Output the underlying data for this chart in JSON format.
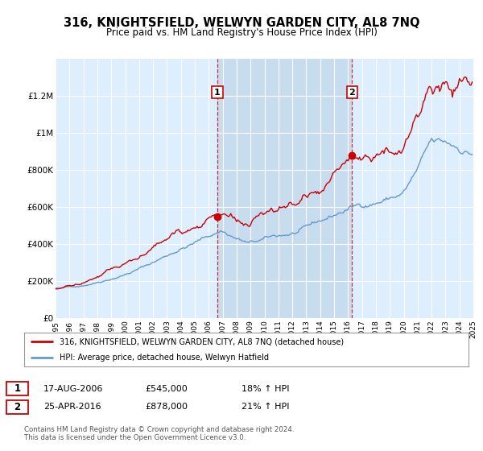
{
  "title": "316, KNIGHTSFIELD, WELWYN GARDEN CITY, AL8 7NQ",
  "subtitle": "Price paid vs. HM Land Registry's House Price Index (HPI)",
  "title_fontsize": 10.5,
  "subtitle_fontsize": 8.5,
  "background_color": "#ffffff",
  "plot_bg_color": "#ddeeff",
  "shade_color": "#c8dcf0",
  "grid_color": "#ffffff",
  "red_line_color": "#cc0000",
  "blue_line_color": "#6699cc",
  "sale1_year": 2006.62,
  "sale1_price": 545000,
  "sale2_year": 2016.29,
  "sale2_price": 878000,
  "legend_line1": "316, KNIGHTSFIELD, WELWYN GARDEN CITY, AL8 7NQ (detached house)",
  "legend_line2": "HPI: Average price, detached house, Welwyn Hatfield",
  "sale1_text": "17-AUG-2006",
  "sale1_pct": "18% ↑ HPI",
  "sale2_text": "25-APR-2016",
  "sale2_pct": "21% ↑ HPI",
  "footer1": "Contains HM Land Registry data © Crown copyright and database right 2024.",
  "footer2": "This data is licensed under the Open Government Licence v3.0.",
  "ylim": [
    0,
    1400000
  ],
  "yticks": [
    0,
    200000,
    400000,
    600000,
    800000,
    1000000,
    1200000
  ],
  "ytick_labels": [
    "£0",
    "£200K",
    "£400K",
    "£600K",
    "£800K",
    "£1M",
    "£1.2M"
  ],
  "xmin": 1995,
  "xmax": 2025
}
